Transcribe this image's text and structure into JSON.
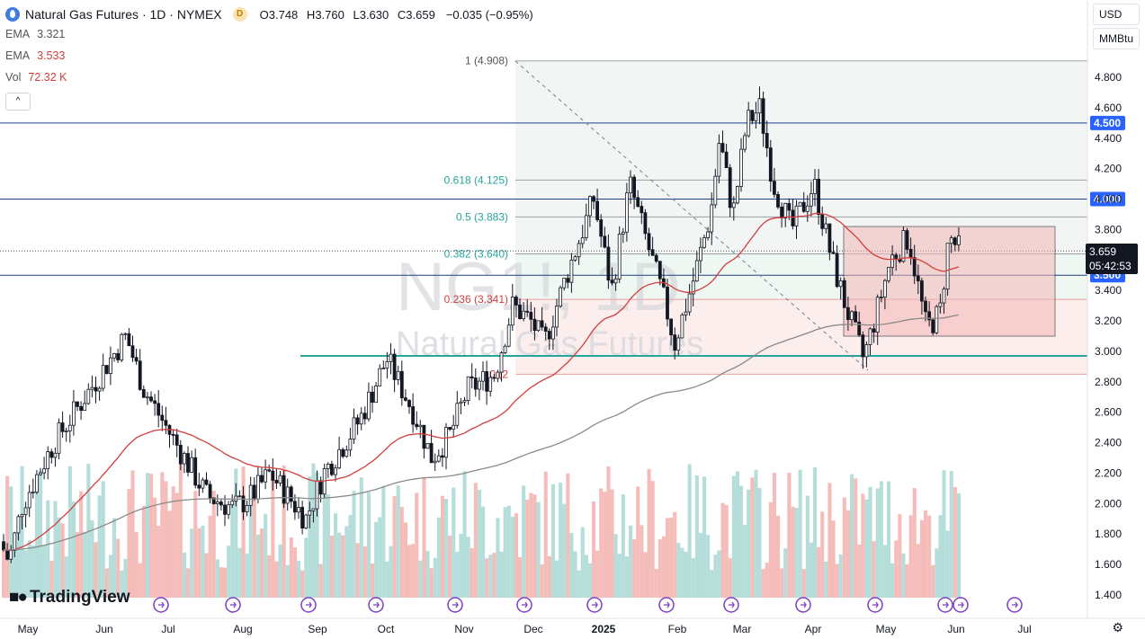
{
  "header": {
    "title": "Natural Gas Futures · 1D · NYMEX",
    "badge": "D",
    "ohlc": [
      {
        "k": "O",
        "v": "3.748"
      },
      {
        "k": "H",
        "v": "3.760"
      },
      {
        "k": "L",
        "v": "3.630"
      },
      {
        "k": "C",
        "v": "3.659"
      }
    ],
    "change": "−0.035 (−0.95%)",
    "indicators": [
      {
        "name": "EMA",
        "value": "3.321"
      },
      {
        "name": "EMA",
        "value": "3.533"
      },
      {
        "name": "Vol",
        "value": "72.32 K"
      }
    ],
    "collapse_label": "^"
  },
  "controls": {
    "currency": "USD",
    "unit": "MMBtu"
  },
  "watermark": {
    "symbol": "NG1!, 1D",
    "name": "Natural Gas Futures"
  },
  "brand": "TradingView",
  "chart_data": {
    "type": "candlestick",
    "yticks": [
      "4.800",
      "4.600",
      "4.400",
      "4.200",
      "4.000",
      "3.800",
      "3.600",
      "3.400",
      "3.200",
      "3.000",
      "2.800",
      "2.600",
      "2.400",
      "2.200",
      "2.000",
      "1.800",
      "1.600",
      "1.400"
    ],
    "xticks": [
      "May",
      "Jun",
      "Jul",
      "Aug",
      "Sep",
      "Oct",
      "Nov",
      "Dec",
      "2025",
      "Feb",
      "Mar",
      "Apr",
      "May",
      "Jun",
      "Jul"
    ],
    "ylim": [
      1.3,
      5.0
    ],
    "fib_levels": [
      {
        "label": "1 (4.908)",
        "value": 4.908
      },
      {
        "label": "0.618 (4.125)",
        "value": 4.125
      },
      {
        "label": "0.5 (3.883)",
        "value": 3.883
      },
      {
        "label": "0.382 (3.640)",
        "value": 3.64
      },
      {
        "label": "0.236 (3.341)",
        "value": 3.341
      },
      {
        "label": "0 (2",
        "value": 2.85
      }
    ],
    "horizontal_lines": [
      {
        "label": "4.500",
        "value": 4.5
      },
      {
        "label": "4.000",
        "value": 4.0
      },
      {
        "label": "3.500",
        "value": 3.5
      }
    ],
    "support_line": 2.97,
    "current_price": {
      "label": "3.659",
      "countdown": "05:42:53",
      "value": 3.659
    },
    "box": {
      "low": 3.1,
      "high": 3.82
    },
    "colors": {
      "up": "#26a69a",
      "down": "#ef5350",
      "ema_fast": "#d43d3d",
      "ema_slow": "#8a8a8a",
      "hline": "#2962ff",
      "badge": "#2962ff",
      "fib_text_up": "#26a69a",
      "fib_text_down": "#d43d3d"
    }
  }
}
